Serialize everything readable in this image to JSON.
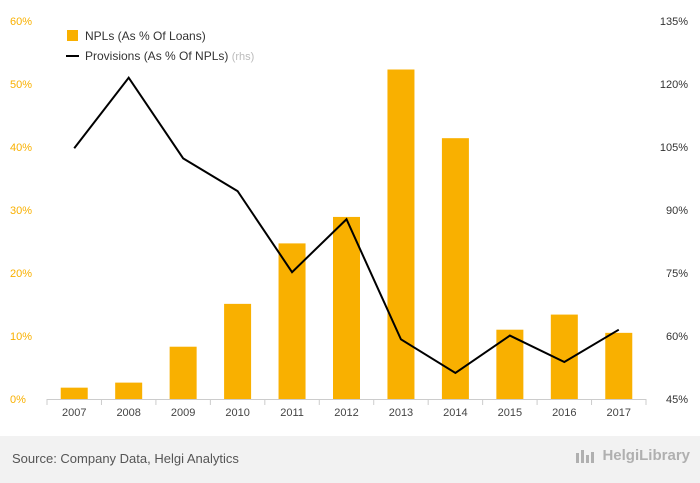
{
  "chart_data": {
    "type": "bar",
    "categories": [
      "2007",
      "2008",
      "2009",
      "2010",
      "2011",
      "2012",
      "2013",
      "2014",
      "2015",
      "2016",
      "2017"
    ],
    "series": [
      {
        "name": "NPLs (As % Of Loans)",
        "type": "bar",
        "axis": "left",
        "color": "#f9b000",
        "values": [
          1.8,
          2.6,
          8.3,
          15.1,
          24.7,
          28.9,
          52.3,
          41.4,
          11.0,
          13.4,
          10.5
        ]
      },
      {
        "name": "Provisions (As % Of NPLs)",
        "name_suffix": "(rhs)",
        "type": "line",
        "axis": "right",
        "color": "#000000",
        "values": [
          104.7,
          121.5,
          102.3,
          94.5,
          75.2,
          87.8,
          59.2,
          51.2,
          60.1,
          53.8,
          61.5
        ]
      }
    ],
    "yleft": {
      "min": 0,
      "max": 60,
      "step": 10,
      "ticks": [
        "0%",
        "10%",
        "20%",
        "30%",
        "40%",
        "50%",
        "60%"
      ],
      "color": "#f9b000"
    },
    "yright": {
      "min": 45,
      "max": 135,
      "step": 15,
      "ticks": [
        "45%",
        "60%",
        "75%",
        "90%",
        "105%",
        "120%",
        "135%"
      ],
      "color": "#333333"
    },
    "legend_position": "top-left",
    "grid": false
  },
  "footer": {
    "source": "Source: Company Data, Helgi Analytics",
    "brand": "HelgiLibrary"
  }
}
